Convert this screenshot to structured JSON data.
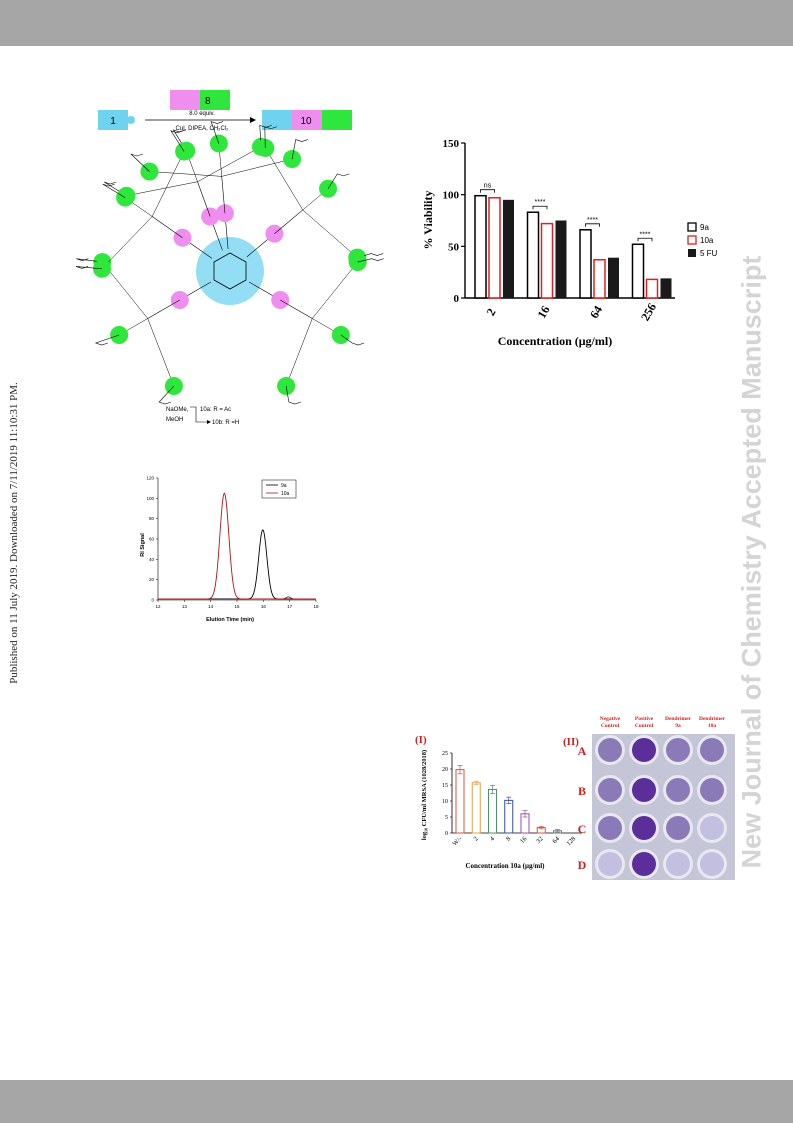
{
  "sidebar_right": "New Journal of Chemistry Accepted Manuscript",
  "sidebar_left": "Published on 11 July 2019. Downloaded on 7/11/2019 11:10:31 PM.",
  "scheme": {
    "reactant": "1",
    "reagent": "8",
    "product": "10",
    "equiv": "8.0 equiv.",
    "conditions": "CuI, DIPEA, CH₂Cl₂",
    "deprotect_reagent_1": "NaOMe,",
    "deprotect_reagent_2": "MeOH",
    "product_a": "10a: R = Ac",
    "product_b": "10b: R =H",
    "colors": {
      "core": "#6fd3f0",
      "linker": "#f08ef0",
      "sugar": "#2ee63c"
    }
  },
  "chart_data": [
    {
      "type": "line",
      "xlabel": "Elution Time (min)",
      "ylabel": "RI Signal",
      "xlim": [
        12,
        18
      ],
      "ylim": [
        0,
        120
      ],
      "xticks": [
        "12",
        "13",
        "14",
        "15",
        "16",
        "17",
        "18"
      ],
      "yticks": [
        "0",
        "20",
        "40",
        "60",
        "80",
        "100",
        "120"
      ],
      "legend_placement": "top-right",
      "series": [
        {
          "name": "9a",
          "color": "#000000",
          "peak_x": 15.98,
          "peak_y": 68,
          "width": 0.22
        },
        {
          "name": "10a",
          "color": "#b01515",
          "peak_x": 14.52,
          "peak_y": 104,
          "width": 0.24,
          "minor_x": 16.95,
          "minor_y": 2
        }
      ]
    },
    {
      "type": "bar",
      "ylabel": "% Viability",
      "xlabel": "Concentration (μg/ml)",
      "ylim": [
        0,
        150
      ],
      "yticks": [
        "0",
        "50",
        "100",
        "150"
      ],
      "categories": [
        "2",
        "16",
        "64",
        "256"
      ],
      "legend_placement": "right",
      "series": [
        {
          "name": "9a",
          "style": "open-black",
          "values": [
            99,
            83,
            66,
            52
          ]
        },
        {
          "name": "10a",
          "style": "open-red",
          "values": [
            97,
            72,
            37,
            18
          ]
        },
        {
          "name": "5 FU",
          "style": "filled-black",
          "values": [
            95,
            75,
            39,
            19
          ]
        }
      ],
      "significance": [
        "ns",
        "****",
        "****",
        "****"
      ]
    },
    {
      "type": "bar",
      "panel_label": "(I)",
      "ylabel": "log₁₀ CFU/ml MRSA (1028/2018)",
      "xlabel": "Concentration 10a (μg/ml)",
      "ylim": [
        0,
        25
      ],
      "yticks": [
        "0",
        "5",
        "10",
        "15",
        "20",
        "25"
      ],
      "categories": [
        "W/-",
        "2",
        "4",
        "8",
        "16",
        "32",
        "64",
        "128"
      ],
      "values": [
        19.8,
        15.7,
        13.6,
        10.2,
        6.0,
        1.7,
        0.7,
        0.0
      ],
      "errors": [
        1.3,
        0.5,
        1.3,
        1.0,
        1.0,
        0.4,
        0.4,
        0.0
      ],
      "colors": [
        "#d9533c",
        "#e2a04a",
        "#4f8f6b",
        "#3c4b9c",
        "#9b4fa8",
        "#d9533c",
        "#777777",
        "#777777"
      ]
    }
  ],
  "plate": {
    "panel_label": "(II)",
    "columns": [
      "Negative Control",
      "Positive Control",
      "Dendrimer 9a",
      "Dendrimer 10a"
    ],
    "rows": [
      "A",
      "B",
      "C",
      "D"
    ],
    "colors": {
      "label": "#cc1f1f",
      "plate_bg": "#c4c6d8",
      "deep": "#5b2e9a",
      "medium": "#8b7ab8",
      "light": "#c2bfe0"
    }
  }
}
